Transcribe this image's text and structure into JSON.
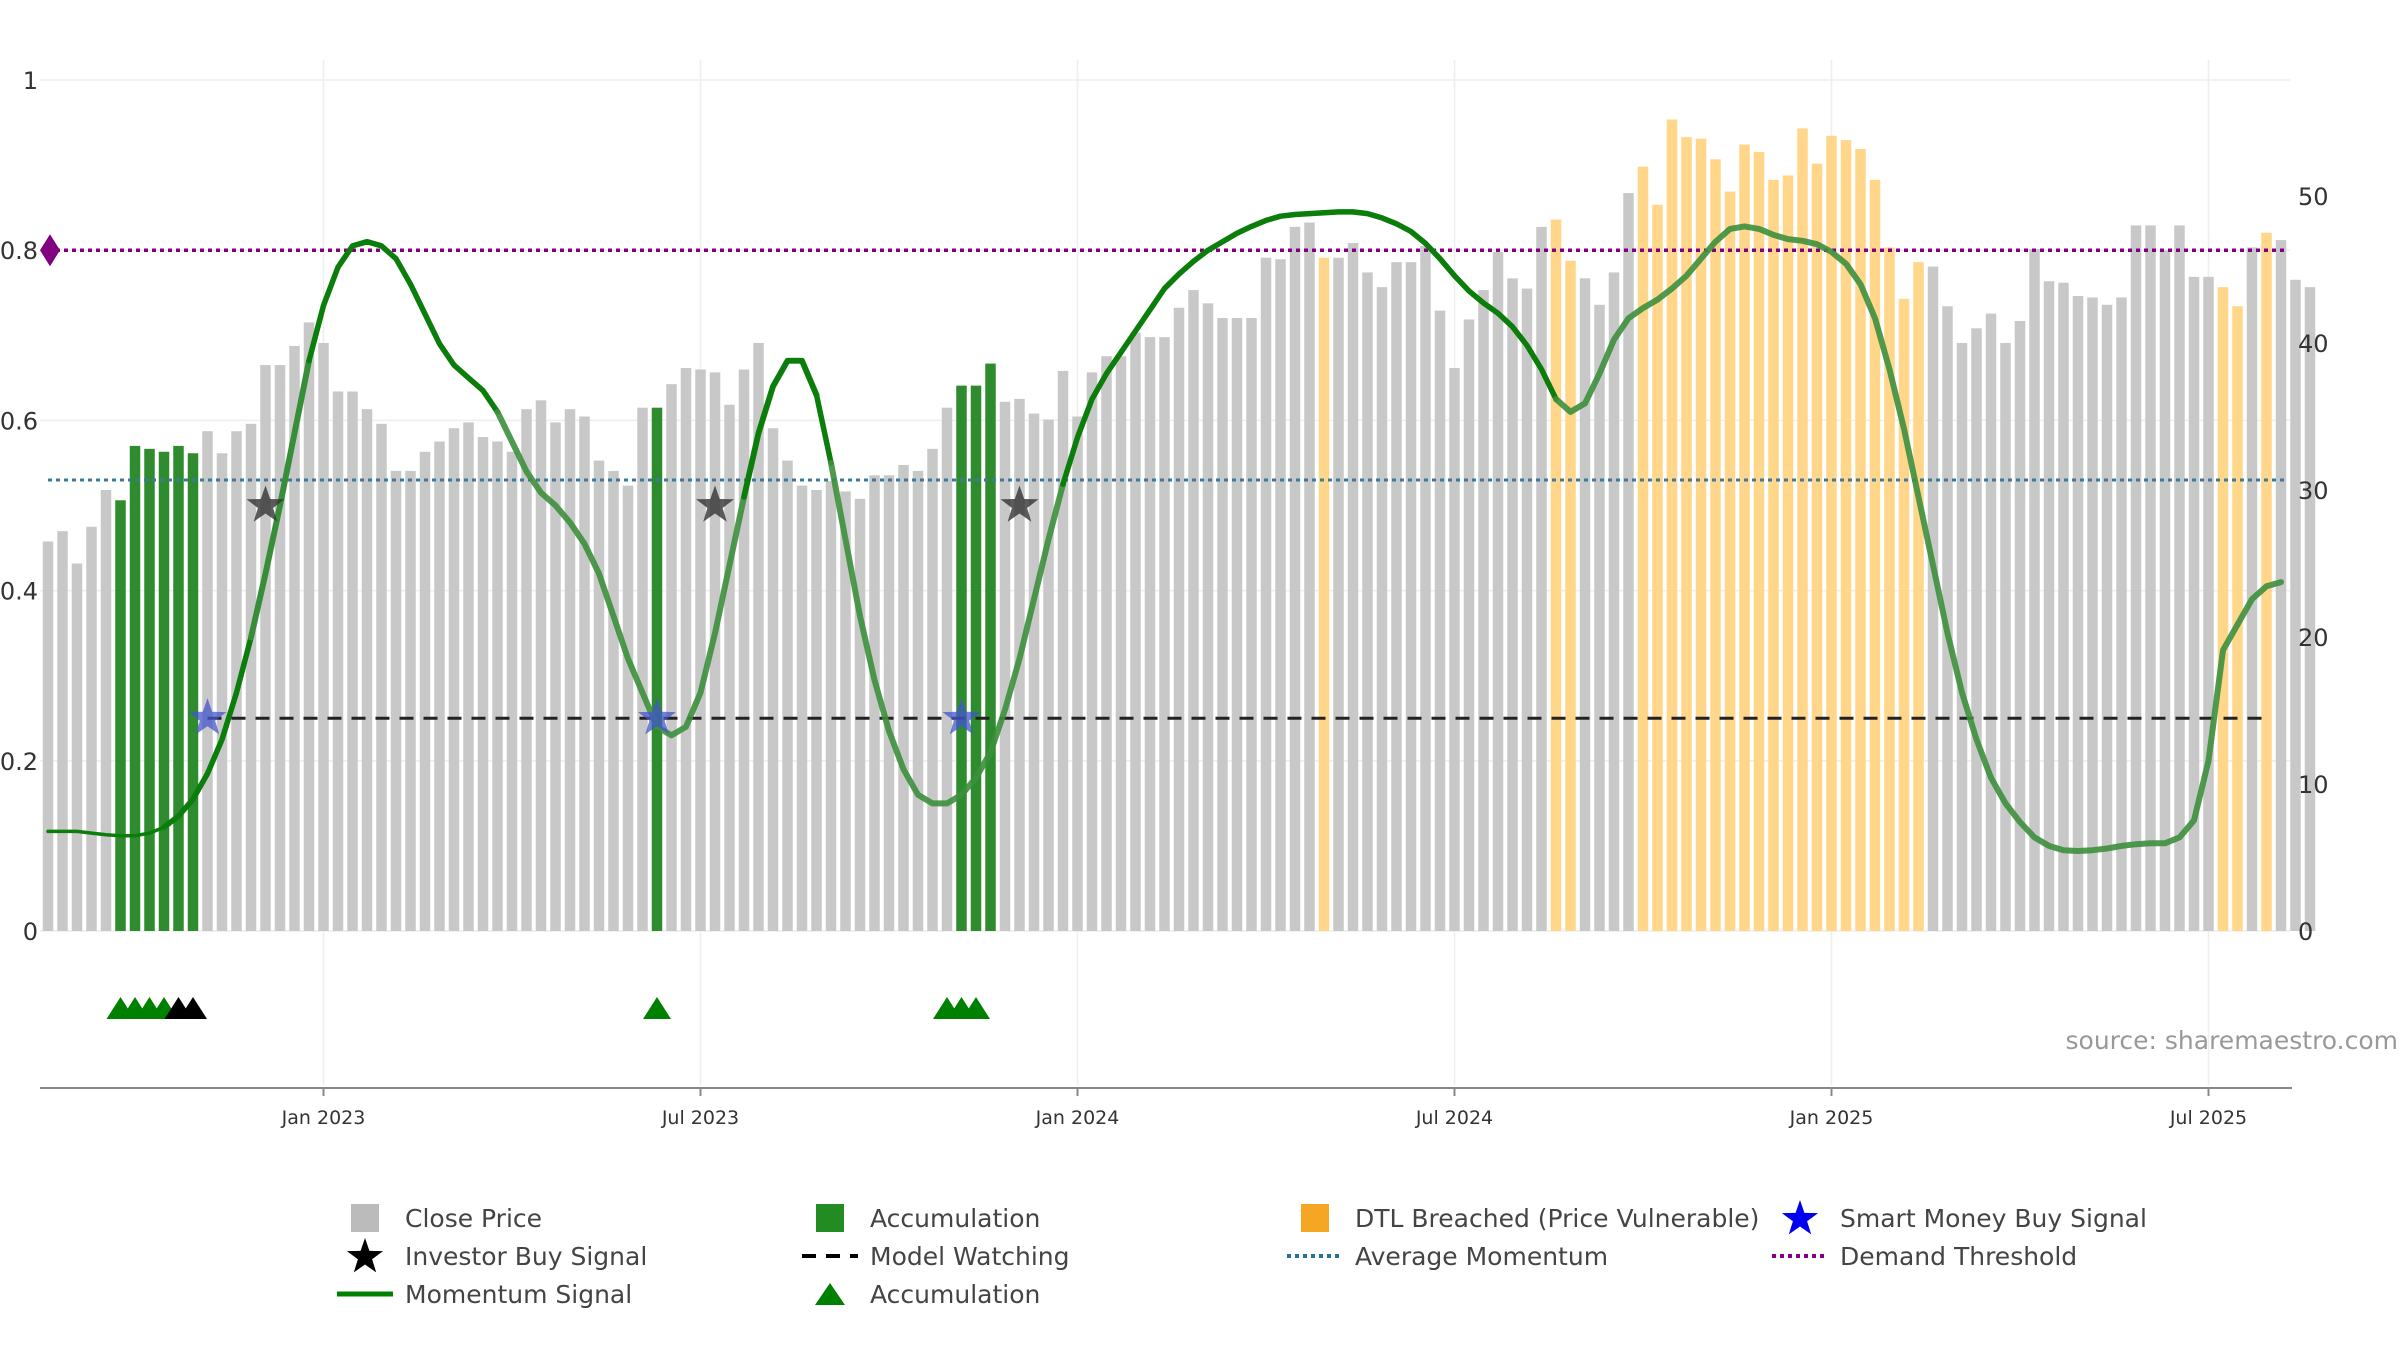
{
  "chart_data": {
    "type": "bar",
    "source_label": "source: sharemaestro.com",
    "left_axis": {
      "range": [
        0,
        1
      ],
      "ticks": [
        "0",
        "0.2",
        "0.4",
        "0.6",
        "0.8",
        "1"
      ]
    },
    "right_axis": {
      "range": [
        0,
        58
      ],
      "ticks": [
        "0",
        "10",
        "20",
        "30",
        "40",
        "50"
      ]
    },
    "x_axis": {
      "ticks": [
        {
          "week": 19,
          "label": "Jan 2023"
        },
        {
          "week": 45,
          "label": "Jul 2023"
        },
        {
          "week": 71,
          "label": "Jan 2024"
        },
        {
          "week": 97,
          "label": "Jul 2024"
        },
        {
          "week": 123,
          "label": "Jan 2025"
        },
        {
          "week": 149,
          "label": "Jul 2025"
        }
      ]
    },
    "close_price": [
      26.5,
      27.2,
      25.0,
      27.5,
      30.0,
      29.3,
      33.0,
      32.8,
      32.6,
      33.0,
      32.5,
      34.0,
      32.5,
      34.0,
      34.5,
      38.5,
      38.5,
      39.8,
      41.4,
      40.0,
      36.7,
      36.7,
      35.5,
      34.5,
      31.3,
      31.3,
      32.6,
      33.3,
      34.2,
      34.6,
      33.6,
      33.3,
      32.6,
      35.5,
      36.1,
      34.6,
      35.5,
      35.0,
      32.0,
      31.3,
      30.3,
      35.6,
      35.6,
      37.2,
      38.3,
      38.2,
      38.0,
      35.8,
      38.2,
      40.0,
      34.2,
      32.0,
      30.3,
      30.0,
      30.6,
      29.9,
      29.4,
      31.0,
      31.0,
      31.7,
      31.3,
      32.8,
      35.6,
      37.1,
      37.1,
      38.6,
      36.0,
      36.2,
      35.2,
      34.8,
      38.1,
      35.0,
      38.0,
      39.1,
      39.1,
      40.7,
      40.4,
      40.4,
      42.4,
      43.6,
      42.7,
      41.7,
      41.7,
      41.7,
      45.8,
      45.7,
      47.9,
      48.2,
      45.8,
      45.8,
      46.8,
      44.8,
      43.8,
      45.5,
      45.5,
      46.6,
      42.2,
      38.3,
      41.6,
      43.6,
      46.2,
      44.4,
      43.7,
      47.9,
      48.4,
      45.6,
      44.4,
      42.6,
      44.8,
      50.2,
      52.0,
      49.4,
      55.2,
      54.0,
      53.9,
      52.5,
      50.3,
      53.5,
      53.0,
      51.1,
      51.4,
      54.6,
      52.2,
      54.1,
      53.8,
      53.2,
      51.1,
      46.5,
      43.0,
      45.5,
      45.2,
      42.5,
      40.0,
      41.0,
      42.0,
      40.0,
      41.5,
      46.4,
      44.2,
      44.1,
      43.2,
      43.1,
      42.6,
      43.1,
      48.0,
      48.0,
      46.3,
      48.0,
      44.5,
      44.5,
      43.8,
      42.5,
      46.5,
      47.5,
      47.0,
      44.3,
      43.8
    ],
    "accumulation_weeks": [
      5,
      6,
      7,
      8,
      9,
      10,
      42,
      63,
      64,
      65
    ],
    "dtl_breached_weeks": [
      88,
      104,
      105,
      110,
      111,
      112,
      113,
      114,
      115,
      116,
      117,
      118,
      119,
      120,
      121,
      122,
      123,
      124,
      125,
      126,
      127,
      128,
      129,
      150,
      151,
      153
    ],
    "momentum_signal": [
      0.117,
      0.117,
      0.117,
      0.115,
      0.113,
      0.112,
      0.112,
      0.115,
      0.122,
      0.135,
      0.155,
      0.185,
      0.225,
      0.28,
      0.345,
      0.42,
      0.5,
      0.585,
      0.67,
      0.735,
      0.78,
      0.805,
      0.81,
      0.805,
      0.79,
      0.76,
      0.725,
      0.69,
      0.665,
      0.65,
      0.635,
      0.61,
      0.575,
      0.54,
      0.515,
      0.5,
      0.48,
      0.455,
      0.42,
      0.37,
      0.32,
      0.28,
      0.24,
      0.23,
      0.24,
      0.28,
      0.35,
      0.43,
      0.51,
      0.585,
      0.64,
      0.67,
      0.67,
      0.63,
      0.55,
      0.46,
      0.37,
      0.295,
      0.235,
      0.19,
      0.16,
      0.15,
      0.15,
      0.16,
      0.18,
      0.21,
      0.26,
      0.32,
      0.39,
      0.46,
      0.525,
      0.58,
      0.625,
      0.655,
      0.68,
      0.705,
      0.73,
      0.755,
      0.772,
      0.787,
      0.8,
      0.81,
      0.82,
      0.828,
      0.835,
      0.84,
      0.842,
      0.843,
      0.844,
      0.845,
      0.845,
      0.843,
      0.838,
      0.831,
      0.822,
      0.808,
      0.79,
      0.77,
      0.752,
      0.738,
      0.726,
      0.71,
      0.688,
      0.66,
      0.625,
      0.61,
      0.62,
      0.655,
      0.695,
      0.72,
      0.732,
      0.742,
      0.755,
      0.77,
      0.79,
      0.81,
      0.825,
      0.828,
      0.825,
      0.818,
      0.813,
      0.811,
      0.807,
      0.798,
      0.784,
      0.76,
      0.72,
      0.66,
      0.59,
      0.51,
      0.43,
      0.35,
      0.28,
      0.225,
      0.18,
      0.15,
      0.128,
      0.11,
      0.1,
      0.095,
      0.094,
      0.095,
      0.097,
      0.1,
      0.102,
      0.103,
      0.103,
      0.11,
      0.13,
      0.2,
      0.33,
      0.36,
      0.39,
      0.405,
      0.41
    ],
    "momentum_segments": [
      {
        "style": "thin",
        "range": [
          0,
          8
        ]
      },
      {
        "style": "thick",
        "range": [
          8,
          18
        ]
      },
      {
        "style": "faded",
        "range": [
          14,
          18
        ]
      },
      {
        "style": "thick",
        "range": [
          18,
          31
        ]
      },
      {
        "style": "faded",
        "range": [
          31,
          53
        ]
      },
      {
        "style": "thick",
        "range": [
          48,
          54
        ]
      },
      {
        "style": "faded",
        "range": [
          54,
          70
        ]
      },
      {
        "style": "thick",
        "range": [
          70,
          104
        ]
      },
      {
        "style": "faded",
        "range": [
          104,
          155
        ]
      }
    ],
    "average_momentum": 0.53,
    "demand_threshold": 0.8,
    "model_watching": {
      "level": 0.25,
      "start_week": 11
    },
    "smart_money_buy_signals": [
      {
        "week": 11,
        "value": 0.25
      },
      {
        "week": 42,
        "value": 0.25
      },
      {
        "week": 63,
        "value": 0.25
      }
    ],
    "investor_buy_signals": [
      {
        "week": 15,
        "value": 0.5
      },
      {
        "week": 46,
        "value": 0.5
      },
      {
        "week": 67,
        "value": 0.5
      }
    ],
    "accumulation_markers": [
      {
        "week": 5,
        "color": "green"
      },
      {
        "week": 6,
        "color": "green"
      },
      {
        "week": 7,
        "color": "green"
      },
      {
        "week": 8,
        "color": "green"
      },
      {
        "week": 9,
        "color": "black"
      },
      {
        "week": 10,
        "color": "black"
      },
      {
        "week": 42,
        "color": "green"
      },
      {
        "week": 62,
        "color": "green"
      },
      {
        "week": 63,
        "color": "green"
      },
      {
        "week": 64,
        "color": "green"
      }
    ],
    "colors": {
      "close_price": "#c8c8c8",
      "accumulation": "#2e8b2e",
      "dtl_breached": "#ffd68a",
      "momentum": "#0a7d0a",
      "momentum_faded": "#3d8f3d",
      "average_momentum": "#3c7a9a",
      "demand_threshold": "#800080",
      "model_watching": "#222222",
      "smart_money": "#4455cc",
      "investor": "#333333"
    },
    "legend": [
      {
        "key": "close-price",
        "label": "Close Price",
        "symbol": "square",
        "color": "#bbbbbb"
      },
      {
        "key": "accumulation-bar",
        "label": "Accumulation",
        "symbol": "square",
        "color": "#228b22"
      },
      {
        "key": "dtl-breached",
        "label": "DTL Breached (Price Vulnerable)",
        "symbol": "square",
        "color": "#f5a623"
      },
      {
        "key": "smart-money-buy-signal",
        "label": "Smart Money Buy Signal",
        "symbol": "star",
        "color": "#0000ee"
      },
      {
        "key": "investor-buy-signal",
        "label": "Investor Buy Signal",
        "symbol": "star",
        "color": "#000000"
      },
      {
        "key": "model-watching",
        "label": "Model Watching",
        "symbol": "dash",
        "color": "#000000"
      },
      {
        "key": "average-momentum",
        "label": "Average Momentum",
        "symbol": "dot",
        "color": "#2a6f97"
      },
      {
        "key": "demand-threshold",
        "label": "Demand Threshold",
        "symbol": "dot",
        "color": "#800080"
      },
      {
        "key": "momentum-signal",
        "label": "Momentum Signal",
        "symbol": "line",
        "color": "#008000"
      },
      {
        "key": "accumulation-marker",
        "label": "Accumulation",
        "symbol": "triangle",
        "color": "#008000"
      }
    ]
  }
}
